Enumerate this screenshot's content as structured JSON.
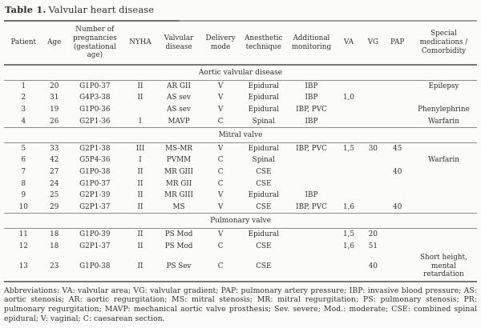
{
  "title": {
    "label": "Table 1.",
    "caption": "Valvular heart disease"
  },
  "table": {
    "columns": [
      "Patient",
      "Age",
      "Number of pregnancies (gestational age)",
      "NYHA",
      "Valvular disease",
      "Delivery mode",
      "Anesthetic technique",
      "Additional monitoring",
      "VA",
      "VG",
      "PAP",
      "Special medications / Comorbidity"
    ],
    "sections": [
      {
        "label": "Aortic valvular disease",
        "rows": [
          [
            "1",
            "20",
            "G1P0-37",
            "II",
            "AR GII",
            "V",
            "Epidural",
            "IBP",
            "",
            "",
            "",
            "Epilepsy"
          ],
          [
            "2",
            "31",
            "G4P3-38",
            "II",
            "AS sev",
            "V",
            "Epidural",
            "IBP",
            "1,0",
            "",
            "",
            ""
          ],
          [
            "3",
            "19",
            "G1P0-36",
            "",
            "AS sev",
            "V",
            "Epidural",
            "IBP, PVC",
            "",
            "",
            "",
            "Phenylephrine"
          ],
          [
            "4",
            "26",
            "G2P1-36",
            "I",
            "MAVP",
            "C",
            "Spinal",
            "IBP",
            "",
            "",
            "",
            "Warfarin"
          ]
        ]
      },
      {
        "label": "Mitral valve",
        "rows": [
          [
            "5",
            "33",
            "G2P1-38",
            "III",
            "MS-MR",
            "V",
            "Epidural",
            "IBP, PVC",
            "1,5",
            "30",
            "45",
            ""
          ],
          [
            "6",
            "42",
            "G5P4-36",
            "I",
            "PVMM",
            "C",
            "Spinal",
            "",
            "",
            "",
            "",
            "Warfarin"
          ],
          [
            "7",
            "27",
            "G1P0-38",
            "II",
            "MR GIII",
            "C",
            "CSE",
            "",
            "",
            "",
            "40",
            ""
          ],
          [
            "8",
            "24",
            "G1P0-37",
            "II",
            "MR GII",
            "C",
            "CSE",
            "",
            "",
            "",
            "",
            ""
          ],
          [
            "9",
            "25",
            "G2P1-39",
            "II",
            "MR GIII",
            "V",
            "Epidural",
            "IBP",
            "",
            "",
            "",
            ""
          ],
          [
            "10",
            "29",
            "G2P1-37",
            "II",
            "MS",
            "V",
            "CSE",
            "IBP, PVC",
            "1,6",
            "",
            "40",
            ""
          ]
        ]
      },
      {
        "label": "Pulmonary valve",
        "rows": [
          [
            "11",
            "18",
            "G1P0-39",
            "II",
            "PS Mod",
            "V",
            "Epidural",
            "",
            "1,5",
            "20",
            "",
            ""
          ],
          [
            "12",
            "18",
            "G2P1-37",
            "II",
            "PS Mod",
            "C",
            "CSE",
            "",
            "1,6",
            "51",
            "",
            ""
          ],
          [
            "13",
            "23",
            "G1P0-38",
            "II",
            "PS Sev",
            "C",
            "CSE",
            "",
            "",
            "40",
            "",
            "Short height, mental retardation"
          ]
        ]
      }
    ]
  },
  "footnote": "Abbreviations: VA: valvular area; VG: valvular gradient; PAP: pulmonary artery pressure; IBP: invasive blood pressure; AS: aortic stenosis; AR: aortic regurgitation; MS: mitral stenosis; MR: mitral regurgitation; PS: pulmonary stenosis; PR: pulmonary regurgitation; MAVP: mechanical aortic valve prosthesis; Sev. severe; Mod.: moderate; CSE: combined spinal epidural; V: vaginal; C: caesarean section.",
  "colors": {
    "text": "#2e2e2e",
    "rule_dark": "#6f6f6f",
    "rule_light": "#a0a0a0",
    "background": "#fbfbfa"
  }
}
